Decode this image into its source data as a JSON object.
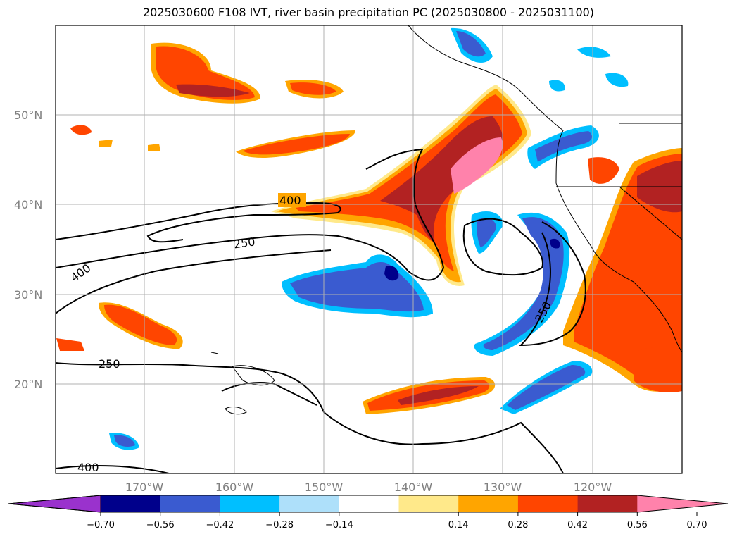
{
  "title": "2025030600 F108 IVT, river basin precipitation PC (2025030800 - 2025031100)",
  "map": {
    "lat_labels": [
      "50°N",
      "40°N",
      "30°N",
      "20°N"
    ],
    "lon_labels": [
      "170°W",
      "160°W",
      "150°W",
      "140°W",
      "130°W",
      "120°W"
    ],
    "contour_labels": [
      "400",
      "250",
      "400",
      "250",
      "250",
      "400"
    ]
  },
  "colorbar": {
    "ticks": [
      "−0.70",
      "−0.56",
      "−0.42",
      "−0.28",
      "−0.14",
      "0.14",
      "0.28",
      "0.42",
      "0.56",
      "0.70"
    ],
    "colors": [
      "#9a32cd",
      "#00008b",
      "#3a5bd0",
      "#00bfff",
      "#aee0fa",
      "#ffffff",
      "#ffe98a",
      "#ffa500",
      "#ff4500",
      "#b22222",
      "#ff82ab"
    ]
  }
}
